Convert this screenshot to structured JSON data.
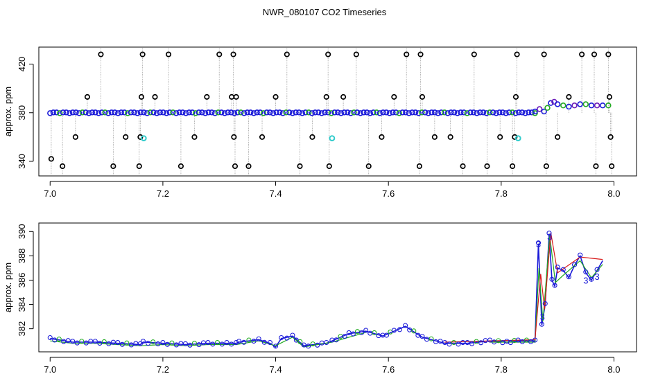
{
  "title": "NWR_080107  CO2 Timeseries",
  "chart_data": [
    {
      "type": "scatter",
      "ylabel": "approx. ppm",
      "xlim": [
        6.98,
        8.04
      ],
      "ylim": [
        328,
        434
      ],
      "xticks": [
        7.0,
        7.2,
        7.4,
        7.6,
        7.8,
        8.0
      ],
      "xtick_labels": [
        "7.0",
        "7.2",
        "7.4",
        "7.6",
        "7.8",
        "8.0"
      ],
      "yticks": [
        340,
        380,
        420
      ],
      "ytick_labels": [
        "340",
        "380",
        "420"
      ],
      "baseline": {
        "x_start": 7.0,
        "x_end": 7.86,
        "y": 380,
        "color": "#1a1ad8"
      },
      "tail": {
        "x": [
          7.86,
          7.868,
          7.876,
          7.882,
          7.888,
          7.894,
          7.9,
          7.91,
          7.92,
          7.93,
          7.94,
          7.95,
          7.96,
          7.97,
          7.98,
          7.99
        ],
        "y": [
          381,
          383,
          381,
          384,
          388,
          389,
          387,
          386,
          385,
          386,
          387,
          387,
          386,
          386,
          386,
          386
        ],
        "colors": [
          "#1a1ad8",
          "#6a1ab8",
          "#1a1ad8",
          "#22aa22"
        ]
      },
      "outliers": {
        "x": [
          7.002,
          7.022,
          7.045,
          7.066,
          7.09,
          7.112,
          7.134,
          7.158,
          7.16,
          7.162,
          7.164,
          7.186,
          7.21,
          7.232,
          7.256,
          7.278,
          7.3,
          7.322,
          7.325,
          7.326,
          7.328,
          7.33,
          7.352,
          7.376,
          7.4,
          7.42,
          7.443,
          7.465,
          7.49,
          7.493,
          7.495,
          7.52,
          7.543,
          7.565,
          7.588,
          7.61,
          7.632,
          7.655,
          7.657,
          7.66,
          7.682,
          7.71,
          7.732,
          7.752,
          7.775,
          7.798,
          7.82,
          7.824,
          7.826,
          7.828,
          7.876,
          7.88,
          7.9,
          7.92,
          7.943,
          7.965,
          7.968,
          7.99,
          7.992,
          7.994,
          7.996
        ],
        "y": [
          342,
          336,
          360,
          393,
          428,
          336,
          360,
          336,
          360,
          393,
          428,
          393,
          428,
          336,
          360,
          393,
          428,
          393,
          428,
          360,
          336,
          393,
          336,
          360,
          393,
          428,
          336,
          360,
          393,
          428,
          336,
          393,
          428,
          336,
          360,
          393,
          428,
          336,
          428,
          393,
          360,
          360,
          336,
          428,
          336,
          360,
          336,
          360,
          393,
          428,
          428,
          336,
          360,
          393,
          428,
          428,
          336,
          428,
          393,
          360,
          336
        ]
      },
      "flagged": {
        "x": [
          7.166,
          7.5,
          7.83
        ],
        "y": [
          359,
          359,
          359
        ],
        "color": "#33cccc"
      }
    },
    {
      "type": "line",
      "ylabel": "approx. ppm",
      "xlim": [
        6.98,
        8.04
      ],
      "ylim": [
        380.1,
        390.7
      ],
      "xticks": [
        7.0,
        7.2,
        7.4,
        7.6,
        7.8,
        8.0
      ],
      "xtick_labels": [
        "7.0",
        "7.2",
        "7.4",
        "7.6",
        "7.8",
        "8.0"
      ],
      "yticks": [
        382,
        384,
        386,
        388,
        390
      ],
      "ytick_labels": [
        "382",
        "384",
        "386",
        "388",
        "390"
      ],
      "series": [
        {
          "color": "#1a1ad8",
          "points": [
            [
              7.0,
              381.2
            ],
            [
              7.04,
              380.9
            ],
            [
              7.08,
              380.9
            ],
            [
              7.12,
              380.8
            ],
            [
              7.16,
              380.7
            ],
            [
              7.165,
              380.9
            ],
            [
              7.2,
              380.8
            ],
            [
              7.24,
              380.7
            ],
            [
              7.28,
              380.8
            ],
            [
              7.33,
              380.8
            ],
            [
              7.335,
              380.9
            ],
            [
              7.37,
              381.1
            ],
            [
              7.39,
              380.8
            ],
            [
              7.4,
              380.5
            ],
            [
              7.41,
              381.2
            ],
            [
              7.43,
              381.4
            ],
            [
              7.45,
              380.6
            ],
            [
              7.49,
              380.8
            ],
            [
              7.5,
              381.0
            ],
            [
              7.53,
              381.6
            ],
            [
              7.56,
              381.8
            ],
            [
              7.59,
              381.4
            ],
            [
              7.61,
              381.8
            ],
            [
              7.63,
              382.2
            ],
            [
              7.66,
              381.3
            ],
            [
              7.7,
              380.8
            ],
            [
              7.74,
              380.8
            ],
            [
              7.78,
              381.0
            ],
            [
              7.81,
              380.9
            ],
            [
              7.83,
              381.0
            ],
            [
              7.86,
              381.0
            ],
            [
              7.866,
              389.0
            ],
            [
              7.872,
              382.3
            ],
            [
              7.878,
              384.0
            ],
            [
              7.885,
              389.8
            ],
            [
              7.89,
              386.0
            ],
            [
              7.895,
              385.5
            ],
            [
              7.9,
              387.0
            ],
            [
              7.91,
              386.8
            ],
            [
              7.92,
              386.2
            ],
            [
              7.93,
              387.2
            ],
            [
              7.94,
              388.0
            ],
            [
              7.95,
              386.6
            ],
            [
              7.96,
              386.0
            ],
            [
              7.97,
              386.8
            ],
            [
              7.98,
              387.6
            ]
          ]
        },
        {
          "color": "#22aa22",
          "points": [
            [
              7.0,
              381.0
            ],
            [
              7.04,
              380.8
            ],
            [
              7.08,
              380.8
            ],
            [
              7.12,
              380.7
            ],
            [
              7.16,
              380.6
            ],
            [
              7.2,
              380.7
            ],
            [
              7.24,
              380.6
            ],
            [
              7.28,
              380.7
            ],
            [
              7.33,
              380.7
            ],
            [
              7.37,
              381.0
            ],
            [
              7.4,
              380.6
            ],
            [
              7.43,
              381.3
            ],
            [
              7.45,
              380.5
            ],
            [
              7.5,
              380.9
            ],
            [
              7.56,
              381.7
            ],
            [
              7.63,
              382.1
            ],
            [
              7.7,
              380.7
            ],
            [
              7.78,
              380.9
            ],
            [
              7.86,
              380.9
            ],
            [
              7.867,
              387.0
            ],
            [
              7.874,
              382.6
            ],
            [
              7.886,
              389.7
            ],
            [
              7.896,
              385.8
            ],
            [
              7.91,
              386.4
            ],
            [
              7.94,
              387.6
            ],
            [
              7.96,
              386.2
            ],
            [
              7.98,
              387.3
            ]
          ]
        },
        {
          "color": "#d81a1a",
          "points": [
            [
              7.0,
              381.1
            ],
            [
              7.08,
              380.9
            ],
            [
              7.16,
              380.7
            ],
            [
              7.24,
              380.7
            ],
            [
              7.33,
              380.8
            ],
            [
              7.43,
              381.5
            ],
            [
              7.5,
              381.0
            ],
            [
              7.63,
              382.3
            ],
            [
              7.7,
              380.9
            ],
            [
              7.86,
              381.1
            ],
            [
              7.87,
              386.5
            ],
            [
              7.877,
              383.6
            ],
            [
              7.888,
              389.9
            ],
            [
              7.9,
              386.6
            ],
            [
              7.94,
              387.9
            ],
            [
              7.98,
              387.7
            ]
          ]
        }
      ],
      "digit_labels": [
        {
          "x": 7.866,
          "y": 389.0,
          "text": "3"
        },
        {
          "x": 7.873,
          "y": 383.0,
          "text": "3"
        },
        {
          "x": 7.886,
          "y": 389.6,
          "text": "3"
        },
        {
          "x": 7.95,
          "y": 386.0,
          "text": "3"
        },
        {
          "x": 7.97,
          "y": 386.3,
          "text": "3"
        }
      ]
    }
  ]
}
